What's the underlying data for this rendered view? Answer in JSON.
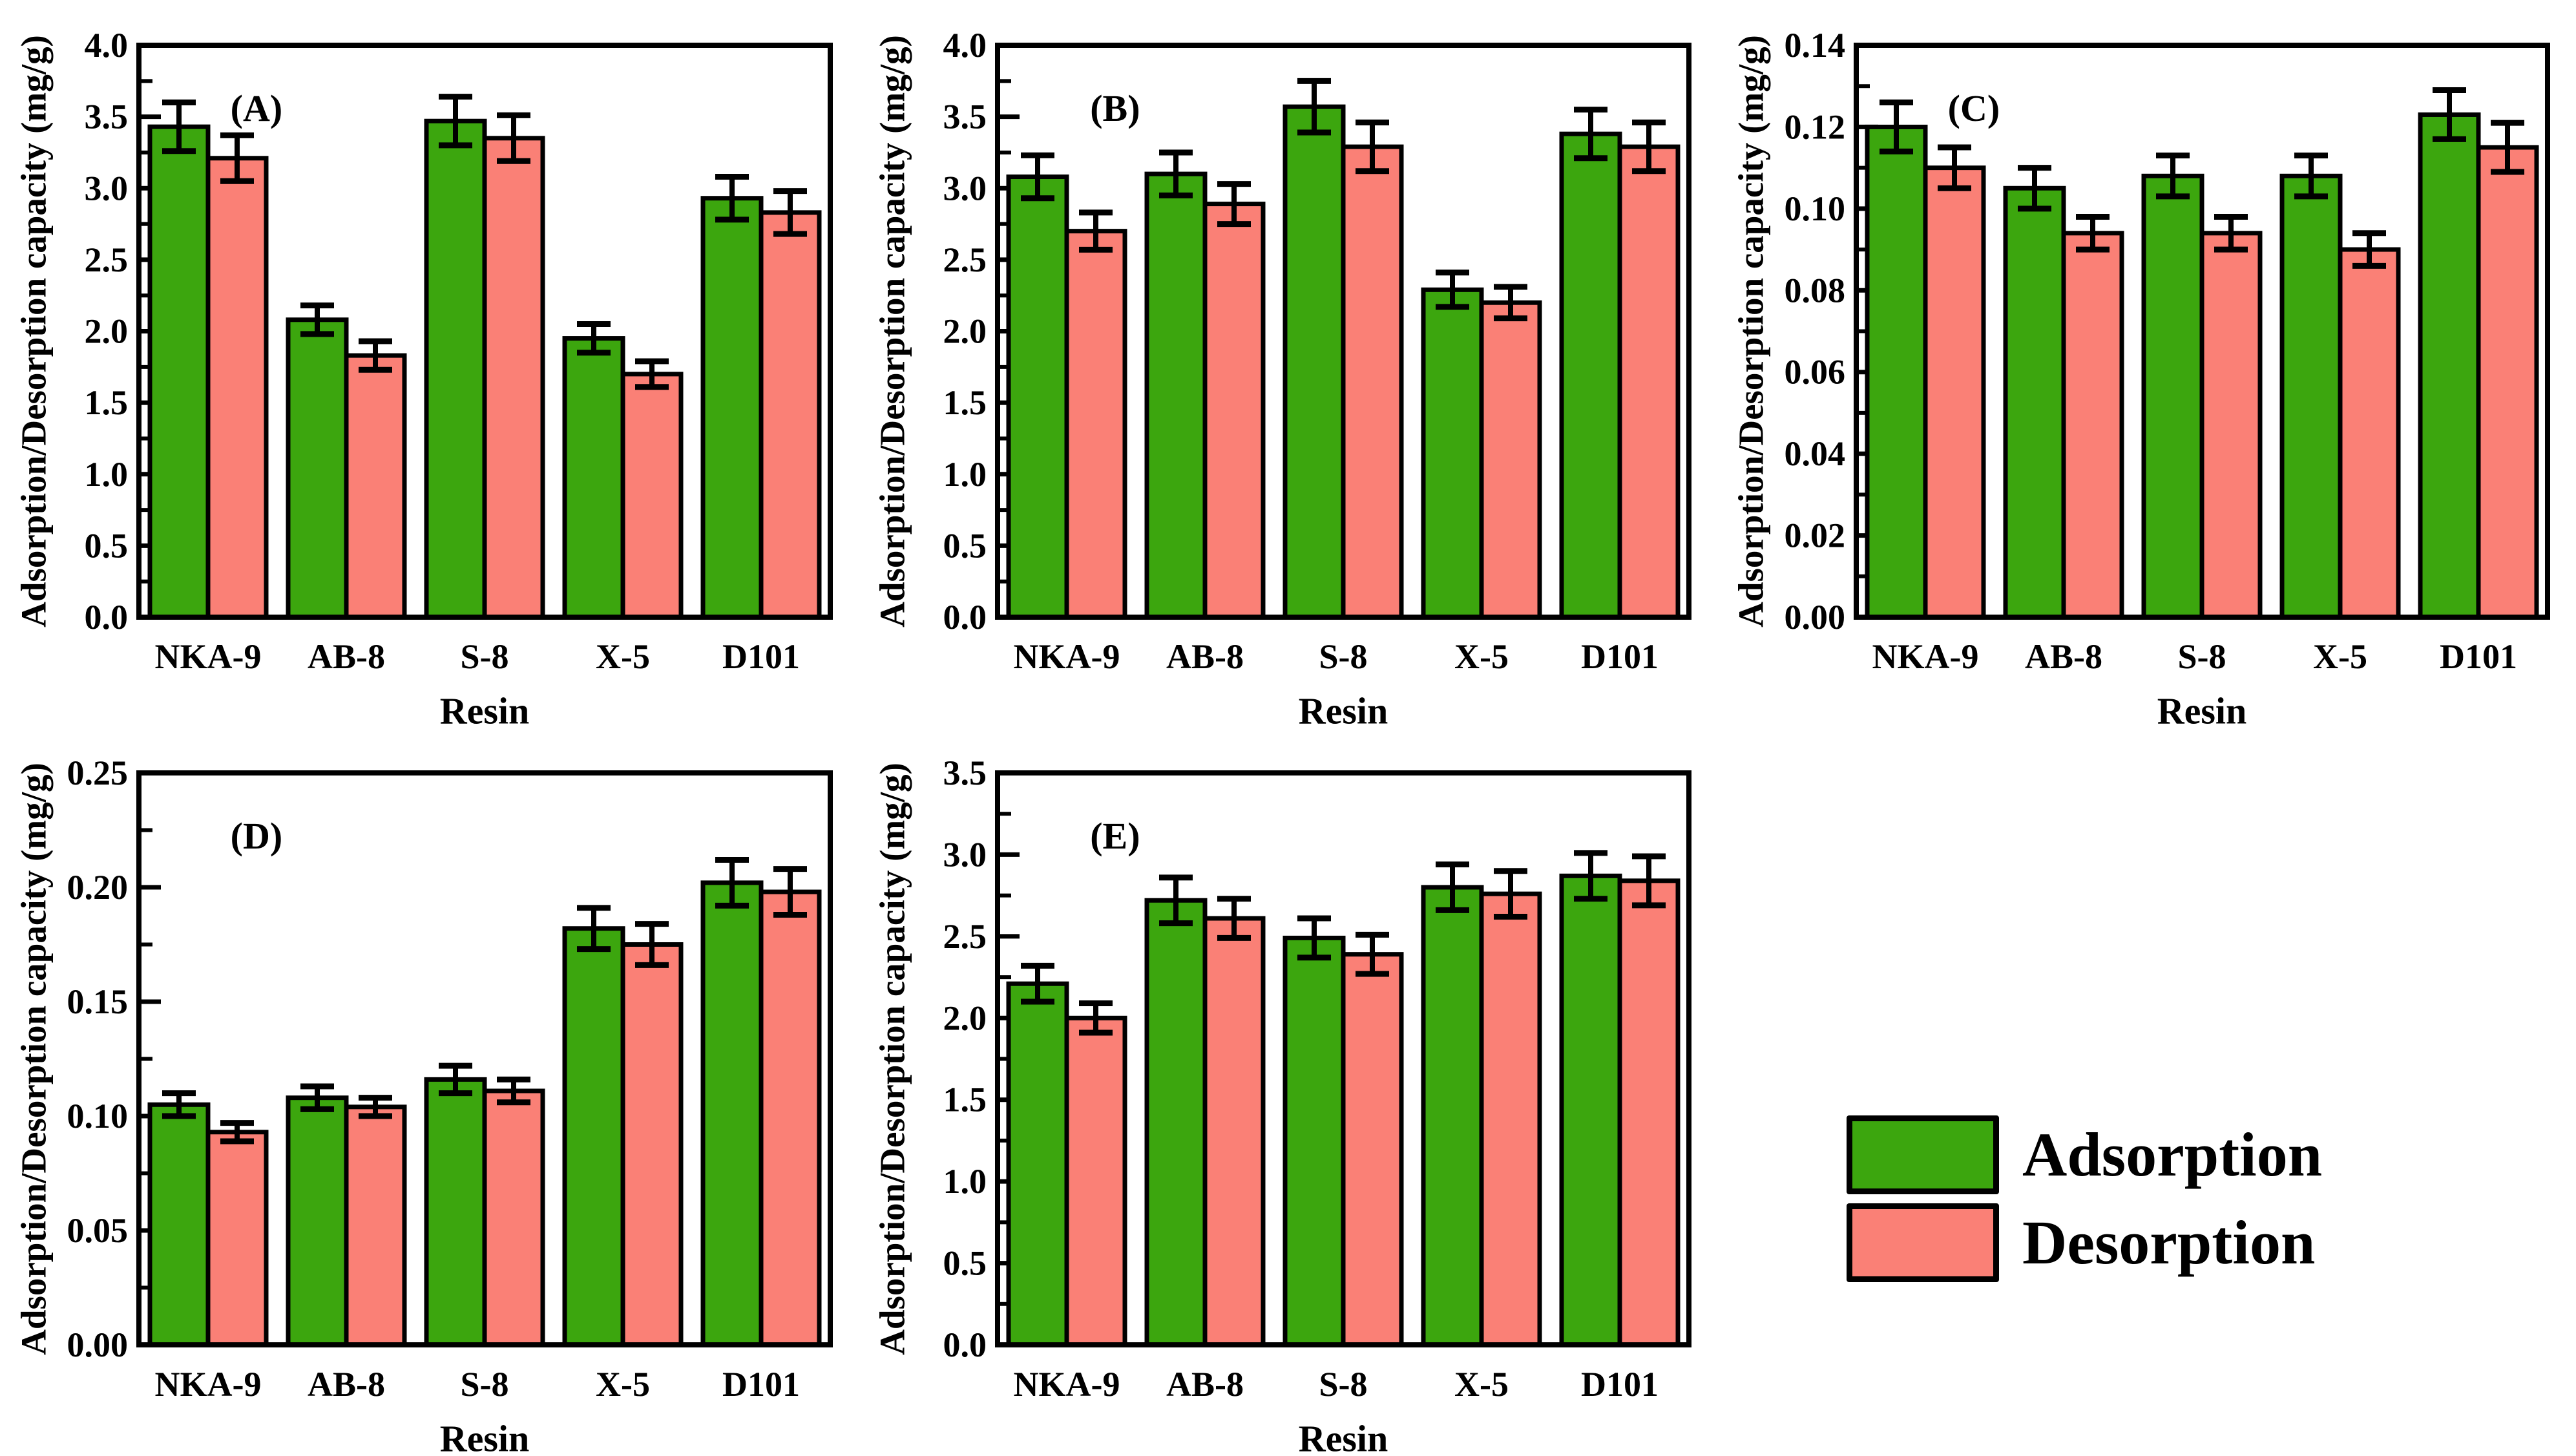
{
  "figure": {
    "background": "#ffffff",
    "colors": {
      "adsorption": "#3CA60E",
      "desorption": "#FA8076",
      "edge": "#000000",
      "errorbar": "#000000"
    },
    "legend": {
      "position": "bottom-right",
      "entries": [
        {
          "label": "Adsorption",
          "color_key": "adsorption"
        },
        {
          "label": "Desorption",
          "color_key": "desorption"
        }
      ]
    }
  },
  "chart_data": [
    {
      "type": "bar",
      "panel_label": "(A)",
      "categories": [
        "NKA-9",
        "AB-8",
        "S-8",
        "X-5",
        "D101"
      ],
      "series": [
        {
          "name": "Adsorption",
          "values": [
            3.43,
            2.08,
            3.47,
            1.95,
            2.93
          ],
          "errors": [
            0.17,
            0.1,
            0.17,
            0.1,
            0.15
          ]
        },
        {
          "name": "Desorption",
          "values": [
            3.21,
            1.83,
            3.35,
            1.7,
            2.83
          ],
          "errors": [
            0.16,
            0.1,
            0.16,
            0.09,
            0.15
          ]
        }
      ],
      "xlabel": "Resin",
      "ylabel": "Adsorption/Desorption capacity (mg/g)",
      "ylim": [
        0,
        4.0
      ],
      "ytick_step": 0.5,
      "ytick_decimals": 1,
      "grid": false
    },
    {
      "type": "bar",
      "panel_label": "(B)",
      "categories": [
        "NKA-9",
        "AB-8",
        "S-8",
        "X-5",
        "D101"
      ],
      "series": [
        {
          "name": "Adsorption",
          "values": [
            3.08,
            3.1,
            3.57,
            2.29,
            3.38
          ],
          "errors": [
            0.15,
            0.15,
            0.18,
            0.12,
            0.17
          ]
        },
        {
          "name": "Desorption",
          "values": [
            2.7,
            2.89,
            3.29,
            2.2,
            3.29
          ],
          "errors": [
            0.13,
            0.14,
            0.17,
            0.11,
            0.17
          ]
        }
      ],
      "xlabel": "Resin",
      "ylabel": "Adsorption/Desorption capacity (mg/g)",
      "ylim": [
        0,
        4.0
      ],
      "ytick_step": 0.5,
      "ytick_decimals": 1,
      "grid": false
    },
    {
      "type": "bar",
      "panel_label": "(C)",
      "categories": [
        "NKA-9",
        "AB-8",
        "S-8",
        "X-5",
        "D101"
      ],
      "series": [
        {
          "name": "Adsorption",
          "values": [
            0.12,
            0.105,
            0.108,
            0.108,
            0.123
          ],
          "errors": [
            0.006,
            0.005,
            0.005,
            0.005,
            0.006
          ]
        },
        {
          "name": "Desorption",
          "values": [
            0.11,
            0.094,
            0.094,
            0.09,
            0.115
          ],
          "errors": [
            0.005,
            0.004,
            0.004,
            0.004,
            0.006
          ]
        }
      ],
      "xlabel": "Resin",
      "ylabel": "Adsorption/Desorption capacity (mg/g)",
      "ylim": [
        0,
        0.14
      ],
      "ytick_step": 0.02,
      "ytick_decimals": 2,
      "grid": false
    },
    {
      "type": "bar",
      "panel_label": "(D)",
      "categories": [
        "NKA-9",
        "AB-8",
        "S-8",
        "X-5",
        "D101"
      ],
      "series": [
        {
          "name": "Adsorption",
          "values": [
            0.105,
            0.108,
            0.116,
            0.182,
            0.202
          ],
          "errors": [
            0.005,
            0.005,
            0.006,
            0.009,
            0.01
          ]
        },
        {
          "name": "Desorption",
          "values": [
            0.093,
            0.104,
            0.111,
            0.175,
            0.198
          ],
          "errors": [
            0.004,
            0.004,
            0.005,
            0.009,
            0.01
          ]
        }
      ],
      "xlabel": "Resin",
      "ylabel": "Adsorption/Desorption capacity (mg/g)",
      "ylim": [
        0,
        0.25
      ],
      "ytick_step": 0.05,
      "ytick_decimals": 2,
      "grid": false
    },
    {
      "type": "bar",
      "panel_label": "(E)",
      "categories": [
        "NKA-9",
        "AB-8",
        "S-8",
        "X-5",
        "D101"
      ],
      "series": [
        {
          "name": "Adsorption",
          "values": [
            2.21,
            2.72,
            2.49,
            2.8,
            2.87
          ],
          "errors": [
            0.11,
            0.14,
            0.12,
            0.14,
            0.14
          ]
        },
        {
          "name": "Desorption",
          "values": [
            2.0,
            2.61,
            2.39,
            2.76,
            2.84
          ],
          "errors": [
            0.09,
            0.12,
            0.12,
            0.14,
            0.15
          ]
        }
      ],
      "xlabel": "Resin",
      "ylabel": "Adsorption/Desorption capacity (mg/g)",
      "ylim": [
        0,
        3.5
      ],
      "ytick_step": 0.5,
      "ytick_decimals": 1,
      "grid": false
    }
  ]
}
